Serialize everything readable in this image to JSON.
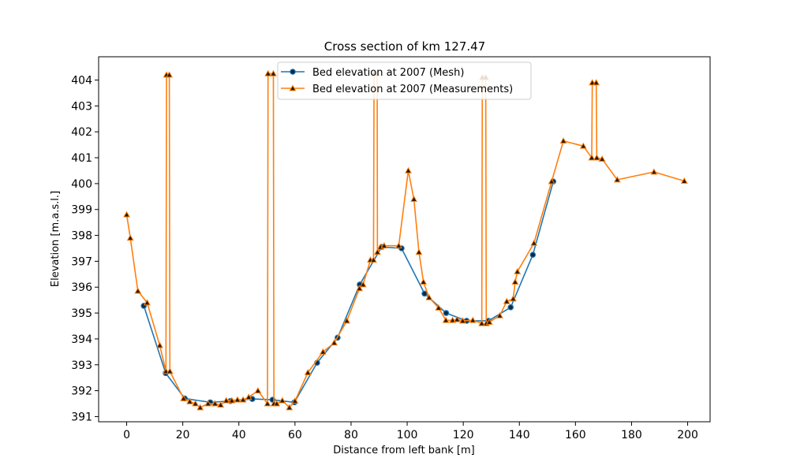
{
  "chart_data": {
    "type": "line",
    "title": "Cross section of km 127.47",
    "xlabel": "Distance from left bank [m]",
    "ylabel": "Elevation [m.a.s.l.]",
    "xlim": [
      -10,
      208
    ],
    "ylim": [
      390.8,
      404.9
    ],
    "xticks": [
      0,
      20,
      40,
      60,
      80,
      100,
      120,
      140,
      160,
      180,
      200
    ],
    "yticks": [
      391,
      392,
      393,
      394,
      395,
      396,
      397,
      398,
      399,
      400,
      401,
      402,
      403,
      404
    ],
    "grid": false,
    "legend_position": "top-center",
    "series": [
      {
        "name": "Bed elevation at 2007 (Mesh)",
        "color": "#1f77b4",
        "marker": "circle",
        "points": [
          [
            6.1,
            395.28
          ],
          [
            13.9,
            392.68
          ],
          [
            20.7,
            391.7
          ],
          [
            29.8,
            391.55
          ],
          [
            37.0,
            391.6
          ],
          [
            44.8,
            391.68
          ],
          [
            52.0,
            391.65
          ],
          [
            59.8,
            391.55
          ],
          [
            67.9,
            393.08
          ],
          [
            75.2,
            394.05
          ],
          [
            83.1,
            396.1
          ],
          [
            90.9,
            397.55
          ],
          [
            98.0,
            397.5
          ],
          [
            106.2,
            395.75
          ],
          [
            113.9,
            395.0
          ],
          [
            121.2,
            394.7
          ],
          [
            129.0,
            394.7
          ],
          [
            136.9,
            395.22
          ],
          [
            144.8,
            397.25
          ],
          [
            152.1,
            400.08
          ]
        ]
      },
      {
        "name": "Bed elevation at 2007 (Measurements)",
        "color": "#ff7f0e",
        "marker": "triangle",
        "points": [
          [
            0.0,
            398.8
          ],
          [
            1.3,
            397.9
          ],
          [
            4.0,
            395.85
          ],
          [
            7.3,
            395.4
          ],
          [
            11.8,
            393.75
          ],
          [
            14.0,
            392.75
          ],
          [
            14.2,
            404.2
          ],
          [
            15.2,
            404.2
          ],
          [
            15.4,
            392.75
          ],
          [
            20.3,
            391.7
          ],
          [
            22.5,
            391.58
          ],
          [
            24.5,
            391.5
          ],
          [
            26.2,
            391.35
          ],
          [
            29.0,
            391.5
          ],
          [
            31.5,
            391.5
          ],
          [
            33.5,
            391.45
          ],
          [
            35.5,
            391.62
          ],
          [
            37.5,
            391.62
          ],
          [
            39.5,
            391.65
          ],
          [
            41.5,
            391.65
          ],
          [
            43.5,
            391.75
          ],
          [
            46.8,
            392.0
          ],
          [
            50.2,
            391.5
          ],
          [
            50.4,
            404.25
          ],
          [
            52.3,
            404.25
          ],
          [
            52.5,
            391.5
          ],
          [
            53.5,
            391.5
          ],
          [
            55.5,
            391.62
          ],
          [
            58.0,
            391.35
          ],
          [
            60.0,
            391.6
          ],
          [
            64.6,
            392.7
          ],
          [
            70.0,
            393.5
          ],
          [
            74.0,
            393.85
          ],
          [
            78.5,
            394.7
          ],
          [
            83.0,
            395.95
          ],
          [
            84.3,
            396.1
          ],
          [
            86.9,
            397.05
          ],
          [
            88.0,
            397.05
          ],
          [
            88.2,
            404.25
          ],
          [
            89.3,
            404.25
          ],
          [
            89.4,
            397.35
          ],
          [
            90.5,
            397.55
          ],
          [
            91.8,
            397.6
          ],
          [
            97.0,
            397.6
          ],
          [
            100.4,
            400.5
          ],
          [
            102.4,
            399.4
          ],
          [
            104.2,
            397.35
          ],
          [
            105.8,
            396.2
          ],
          [
            107.8,
            395.6
          ],
          [
            111.2,
            395.2
          ],
          [
            113.8,
            394.72
          ],
          [
            116.2,
            394.72
          ],
          [
            117.8,
            394.75
          ],
          [
            119.8,
            394.7
          ],
          [
            123.4,
            394.72
          ],
          [
            126.6,
            394.6
          ],
          [
            126.8,
            404.1
          ],
          [
            128.0,
            404.1
          ],
          [
            128.2,
            394.6
          ],
          [
            129.3,
            394.65
          ],
          [
            133.0,
            394.9
          ],
          [
            135.5,
            395.45
          ],
          [
            137.8,
            395.55
          ],
          [
            138.5,
            396.2
          ],
          [
            139.3,
            396.6
          ],
          [
            145.2,
            397.7
          ],
          [
            151.5,
            400.08
          ],
          [
            155.7,
            401.65
          ],
          [
            162.8,
            401.45
          ],
          [
            165.8,
            401.0
          ],
          [
            166.0,
            403.9
          ],
          [
            167.4,
            403.9
          ],
          [
            167.6,
            401.0
          ],
          [
            169.5,
            400.95
          ],
          [
            174.9,
            400.15
          ],
          [
            188.0,
            400.45
          ],
          [
            198.8,
            400.1
          ]
        ]
      }
    ]
  }
}
